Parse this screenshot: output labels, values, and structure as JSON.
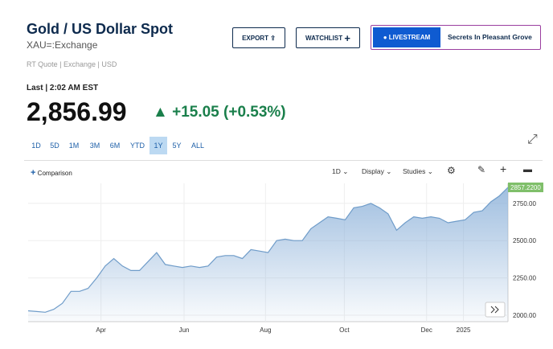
{
  "header": {
    "title": "Gold / US Dollar Spot",
    "symbol": "XAU=:Exchange",
    "meta": "RT Quote | Exchange | USD"
  },
  "actions": {
    "export": "EXPORT",
    "watchlist": "WATCHLIST",
    "livestream": "LIVESTREAM",
    "promo": "Secrets In Pleasant Grove"
  },
  "quote": {
    "last_label": "Last | 2:02 AM EST",
    "price": "2,856.99",
    "change": "+15.05 (+0.53%)"
  },
  "ranges": [
    "1D",
    "5D",
    "1M",
    "3M",
    "6M",
    "YTD",
    "1Y",
    "5Y",
    "ALL"
  ],
  "active_range": "1Y",
  "toolbar": {
    "comparison": "Comparison",
    "interval": "1D",
    "display": "Display",
    "studies": "Studies"
  },
  "chart": {
    "type": "area",
    "color": "#6f9cc9",
    "values": [
      2030,
      2025,
      2020,
      2040,
      2080,
      2160,
      2160,
      2180,
      2250,
      2330,
      2380,
      2330,
      2300,
      2300,
      2360,
      2420,
      2340,
      2330,
      2320,
      2330,
      2320,
      2330,
      2390,
      2400,
      2400,
      2380,
      2440,
      2430,
      2420,
      2500,
      2510,
      2500,
      2500,
      2580,
      2620,
      2660,
      2650,
      2640,
      2720,
      2730,
      2750,
      2720,
      2680,
      2570,
      2620,
      2660,
      2650,
      2660,
      2650,
      2620,
      2630,
      2640,
      2690,
      2700,
      2760,
      2800,
      2857
    ],
    "xlim": [
      0,
      56
    ],
    "xticks": [
      {
        "value": 8.5,
        "label": "Apr"
      },
      {
        "value": 18.2,
        "label": "Jun"
      },
      {
        "value": 27.7,
        "label": "Aug"
      },
      {
        "value": 36.9,
        "label": "Oct"
      },
      {
        "value": 46.5,
        "label": "Dec"
      },
      {
        "value": 50.8,
        "label": "2025"
      }
    ],
    "ylim": [
      1957,
      2884
    ],
    "yticks": [
      {
        "value": 2000,
        "label": "2000.00"
      },
      {
        "value": 2250,
        "label": "2250.00"
      },
      {
        "value": 2500,
        "label": "2500.00"
      },
      {
        "value": 2750,
        "label": "2750.00"
      }
    ],
    "last_value_label": "2857.2200",
    "grid": true
  }
}
